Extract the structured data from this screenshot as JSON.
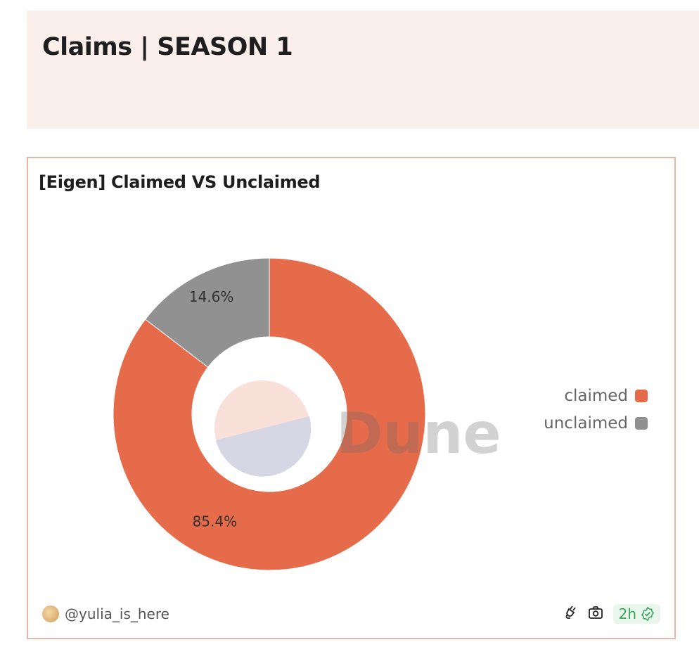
{
  "header": {
    "title": "Claims | SEASON 1"
  },
  "card": {
    "title": "[Eigen] Claimed VS Unclaimed"
  },
  "chart_data": {
    "type": "pie",
    "donut": true,
    "categories": [
      "claimed",
      "unclaimed"
    ],
    "values": [
      85.4,
      14.6
    ],
    "labels": [
      "85.4%",
      "14.6%"
    ],
    "colors": [
      "#e56b4a",
      "#919191"
    ],
    "legend": "right",
    "watermark": "Dune"
  },
  "footer": {
    "user": "@yulia_is_here",
    "freshness": "2h",
    "icons": [
      "plug-icon",
      "camera-icon",
      "check-badge-icon"
    ]
  }
}
